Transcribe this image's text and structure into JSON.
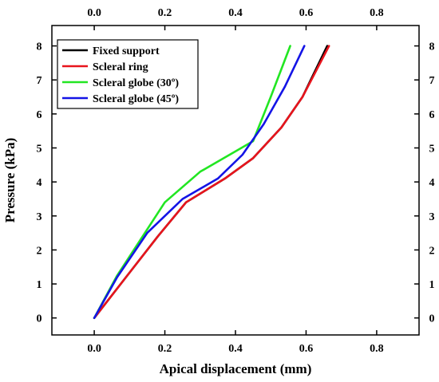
{
  "chart_data": {
    "type": "line",
    "xlabel": "Apical displacement (mm)",
    "ylabel": "Pressure (kPa)",
    "xlim": [
      -0.12,
      0.92
    ],
    "ylim": [
      -0.5,
      8.6
    ],
    "x_ticks": [
      0.0,
      0.2,
      0.4,
      0.6,
      0.8
    ],
    "x_tick_labels": [
      "0.0",
      "0.2",
      "0.4",
      "0.6",
      "0.8"
    ],
    "y_ticks": [
      0,
      1,
      2,
      3,
      4,
      5,
      6,
      7,
      8
    ],
    "y_tick_labels": [
      "0",
      "1",
      "2",
      "3",
      "4",
      "5",
      "6",
      "7",
      "8"
    ],
    "mirror_axes": true,
    "grid": false,
    "legend_position": "top-left",
    "series": [
      {
        "name": "Fixed support",
        "color": "#000000",
        "x": [
          0.0,
          0.09,
          0.18,
          0.26,
          0.37,
          0.45,
          0.53,
          0.59,
          0.66
        ],
        "y": [
          0.0,
          1.2,
          2.4,
          3.4,
          4.1,
          4.7,
          5.6,
          6.5,
          8.0
        ]
      },
      {
        "name": "Scleral ring",
        "color": "#e8141c",
        "x": [
          0.0,
          0.09,
          0.18,
          0.26,
          0.37,
          0.45,
          0.53,
          0.59,
          0.665
        ],
        "y": [
          0.0,
          1.2,
          2.4,
          3.4,
          4.1,
          4.7,
          5.6,
          6.5,
          8.0
        ]
      },
      {
        "name": "Scleral globe (30º)",
        "color": "#22e622",
        "x": [
          0.0,
          0.065,
          0.2,
          0.3,
          0.45,
          0.5,
          0.555
        ],
        "y": [
          0.0,
          1.25,
          3.4,
          4.3,
          5.2,
          6.5,
          8.0
        ]
      },
      {
        "name": "Scleral globe (45º)",
        "color": "#1414e6",
        "x": [
          0.0,
          0.065,
          0.15,
          0.25,
          0.35,
          0.42,
          0.48,
          0.54,
          0.595
        ],
        "y": [
          0.0,
          1.2,
          2.5,
          3.5,
          4.1,
          4.8,
          5.7,
          6.8,
          8.0
        ]
      }
    ]
  }
}
